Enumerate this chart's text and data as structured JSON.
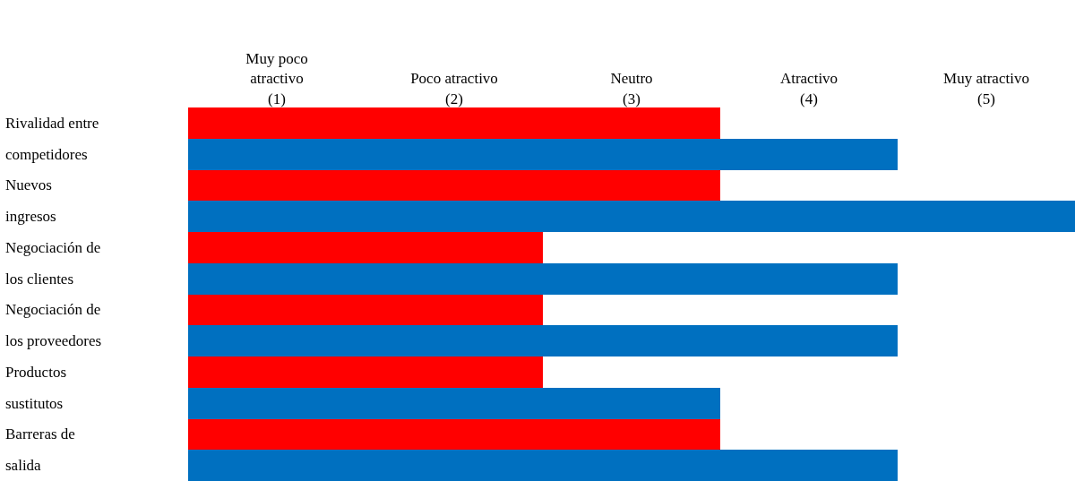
{
  "chart_data": {
    "type": "bar",
    "orientation": "horizontal",
    "categories": [
      "Rivalidad entre competidores",
      "Nuevos ingresos",
      "Negociación de los clientes",
      "Negociación de los proveedores",
      "Productos sustitutos",
      "Barreras de salida"
    ],
    "series": [
      {
        "color": "#ff0000",
        "values": [
          3,
          3,
          2,
          2,
          2,
          3
        ]
      },
      {
        "color": "#0070c0",
        "values": [
          4,
          5,
          4,
          4,
          3,
          4
        ]
      }
    ],
    "xlim": [
      0,
      5
    ],
    "xticks": [
      {
        "value": 0.5,
        "label": "Muy poco atractivo (1)"
      },
      {
        "value": 1.5,
        "label": "Poco atractivo (2)"
      },
      {
        "value": 2.5,
        "label": "Neutro (3)"
      },
      {
        "value": 3.5,
        "label": "Atractivo (4)"
      },
      {
        "value": 4.5,
        "label": "Muy atractivo (5)"
      }
    ]
  }
}
